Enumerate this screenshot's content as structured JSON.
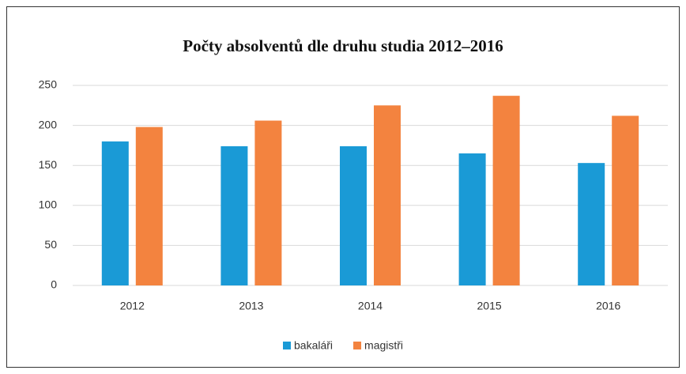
{
  "chart_data": {
    "type": "bar",
    "title": "Počty absolventů dle druhu studia 2012–2016",
    "categories": [
      "2012",
      "2013",
      "2014",
      "2015",
      "2016"
    ],
    "series": [
      {
        "name": "bakaláři",
        "color": "#1a9ad6",
        "values": [
          180,
          174,
          174,
          165,
          153
        ]
      },
      {
        "name": "magistři",
        "color": "#f3833f",
        "values": [
          198,
          206,
          225,
          237,
          212
        ]
      }
    ],
    "ylim": [
      0,
      250
    ],
    "yticks": [
      0,
      50,
      100,
      150,
      200,
      250
    ],
    "grid": true,
    "legend": "bottom"
  }
}
